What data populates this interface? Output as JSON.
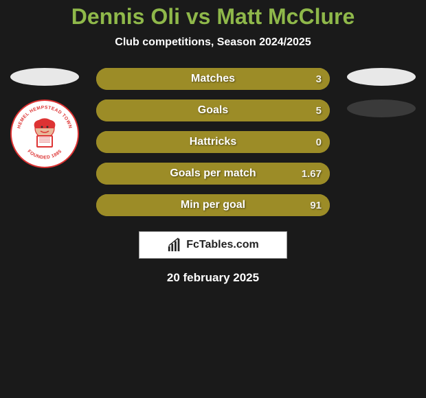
{
  "title_color": "#8fb84a",
  "title": "Dennis Oli vs Matt McClure",
  "subtitle": "Club competitions, Season 2024/2025",
  "left_player": {
    "oval_color": "#e8e8e8",
    "badge": {
      "bg": "#ffffff",
      "border": "#d33333",
      "top_text": "HEMEL HEMPSTEAD TOWN",
      "bottom_text": "FOUNDED 1885"
    }
  },
  "right_player": {
    "oval1_color": "#e8e8e8",
    "oval2_color": "#3a3a3a"
  },
  "stats": {
    "row_bg_left": "#a99a2e",
    "row_bg_right": "#9c8c27",
    "label_color": "#ffffff",
    "value_color": "#ffffff",
    "rows": [
      {
        "label": "Matches",
        "left": "",
        "right": "3",
        "left_pct": 0,
        "right_pct": 100
      },
      {
        "label": "Goals",
        "left": "",
        "right": "5",
        "left_pct": 0,
        "right_pct": 100
      },
      {
        "label": "Hattricks",
        "left": "",
        "right": "0",
        "left_pct": 0,
        "right_pct": 100
      },
      {
        "label": "Goals per match",
        "left": "",
        "right": "1.67",
        "left_pct": 0,
        "right_pct": 100
      },
      {
        "label": "Min per goal",
        "left": "",
        "right": "91",
        "left_pct": 0,
        "right_pct": 100
      }
    ]
  },
  "brand": {
    "text": "FcTables.com",
    "bg": "#ffffff",
    "text_color": "#222222"
  },
  "date": "20 february 2025",
  "background": "#1a1a1a"
}
